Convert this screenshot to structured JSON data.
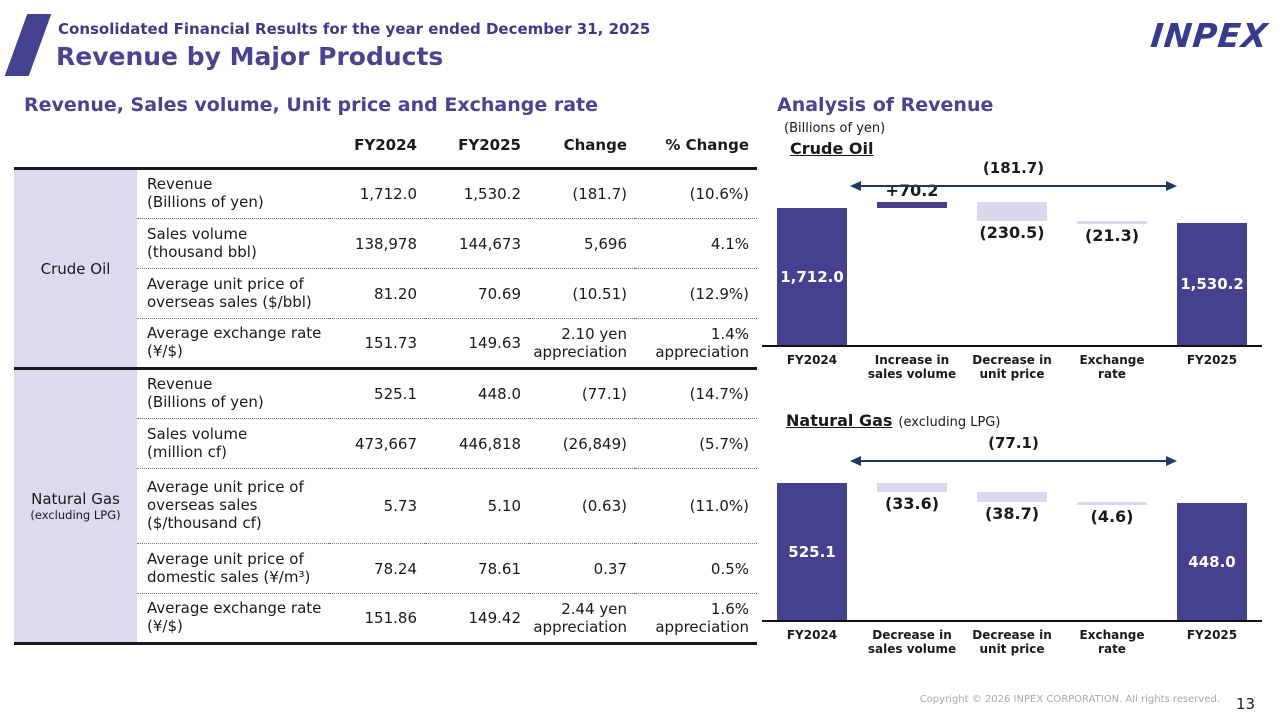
{
  "header": {
    "subtitle": "Consolidated Financial Results for the year ended December 31, 2025",
    "title": "Revenue by Major Products",
    "logo": "INPEX"
  },
  "left": {
    "heading": "Revenue, Sales volume, Unit price and Exchange rate",
    "table": {
      "col_headers": [
        "FY2024",
        "FY2025",
        "Change",
        "% Change"
      ],
      "sections": [
        {
          "product": "Crude Oil",
          "product_sub": "",
          "rows": [
            {
              "item": "Revenue\n(Billions of yen)",
              "values": [
                "1,712.0",
                "1,530.2",
                "(181.7)",
                "(10.6%)"
              ]
            },
            {
              "item": "Sales volume\n(thousand bbl)",
              "values": [
                "138,978",
                "144,673",
                "5,696",
                "4.1%"
              ]
            },
            {
              "item": "Average unit price of\noverseas sales ($/bbl)",
              "values": [
                "81.20",
                "70.69",
                "(10.51)",
                "(12.9%)"
              ]
            },
            {
              "item": "Average exchange rate\n(¥/$)",
              "values": [
                "151.73",
                "149.63",
                "2.10 yen\nappreciation",
                "1.4%\nappreciation"
              ]
            }
          ]
        },
        {
          "product": "Natural Gas",
          "product_sub": "(excluding LPG)",
          "rows": [
            {
              "item": "Revenue\n(Billions of yen)",
              "values": [
                "525.1",
                "448.0",
                "(77.1)",
                "(14.7%)"
              ]
            },
            {
              "item": "Sales volume\n(million cf)",
              "values": [
                "473,667",
                "446,818",
                "(26,849)",
                "(5.7%)"
              ]
            },
            {
              "item": "Average unit price of\noverseas sales\n($/thousand cf)",
              "values": [
                "5.73",
                "5.10",
                "(0.63)",
                "(11.0%)"
              ]
            },
            {
              "item": "Average unit price of\ndomestic sales (¥/m³)",
              "values": [
                "78.24",
                "78.61",
                "0.37",
                "0.5%"
              ]
            },
            {
              "item": "Average exchange rate\n(¥/$)",
              "values": [
                "151.86",
                "149.42",
                "2.44 yen\nappreciation",
                "1.6%\nappreciation"
              ]
            }
          ]
        }
      ]
    }
  },
  "right": {
    "heading": "Analysis of Revenue",
    "unit_note": "(Billions of yen)"
  },
  "chart_data": [
    {
      "type": "waterfall",
      "title": "Crude Oil",
      "title_suffix": "",
      "unit": "Billions of yen",
      "start": {
        "label": "FY2024",
        "value": 1712.0,
        "display": "1,712.0"
      },
      "steps": [
        {
          "label": "Increase in\nsales volume",
          "delta": 70.2,
          "display": "+70.2"
        },
        {
          "label": "Decrease in\nunit price",
          "delta": -230.5,
          "display": "(230.5)"
        },
        {
          "label": "Exchange\nrate",
          "delta": -21.3,
          "display": "(21.3)"
        }
      ],
      "end": {
        "label": "FY2025",
        "value": 1530.2,
        "display": "1,530.2"
      },
      "total_change": "(181.7)"
    },
    {
      "type": "waterfall",
      "title": "Natural Gas",
      "title_suffix": "(excluding LPG)",
      "unit": "Billions of yen",
      "start": {
        "label": "FY2024",
        "value": 525.1,
        "display": "525.1"
      },
      "steps": [
        {
          "label": "Decrease in\nsales volume",
          "delta": -33.6,
          "display": "(33.6)"
        },
        {
          "label": "Decrease in\nunit price",
          "delta": -38.7,
          "display": "(38.7)"
        },
        {
          "label": "Exchange\nrate",
          "delta": -4.6,
          "display": "(4.6)"
        }
      ],
      "end": {
        "label": "FY2025",
        "value": 448.0,
        "display": "448.0"
      },
      "total_change": "(77.1)"
    }
  ],
  "colors": {
    "bar_dark": "#45418E",
    "bar_light": "#D9D8EC",
    "arrow": "#1F3864",
    "heading_purple": "#4A4490",
    "table_label_bg": "#DCDAEE"
  },
  "footer": {
    "copyright": "Copyright © 2026 INPEX CORPORATION. All rights reserved.",
    "page_number": "13"
  }
}
